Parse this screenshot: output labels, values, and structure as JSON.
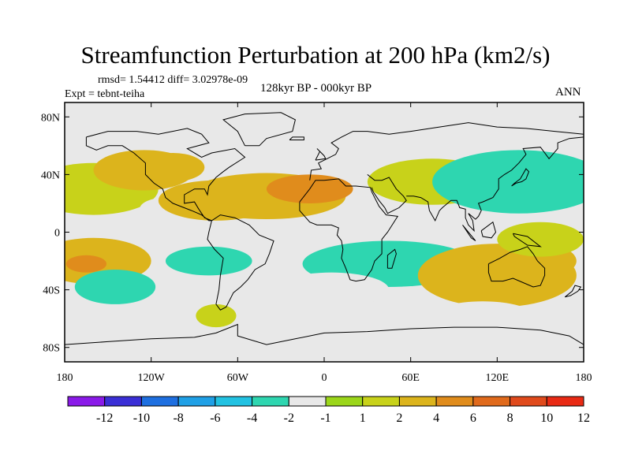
{
  "chart": {
    "title": "Streamfunction Perturbation at 200 hPa (km2/s)",
    "stats_text": "rmsd= 1.54412 diff= 3.02978e-09",
    "experiment_text": "Expt = tebnt-teiha",
    "period_text": "128kyr BP - 000kyr BP",
    "season_text": "ANN"
  },
  "chart_data": {
    "type": "heatmap",
    "title": "Streamfunction Perturbation at 200 hPa (km2/s)",
    "xlabel": "",
    "ylabel": "",
    "xlim": [
      -180,
      180
    ],
    "ylim": [
      -90,
      90
    ],
    "x_ticks": [
      {
        "value": -180,
        "label": "180"
      },
      {
        "value": -120,
        "label": "120W"
      },
      {
        "value": -60,
        "label": "60W"
      },
      {
        "value": 0,
        "label": "0"
      },
      {
        "value": 60,
        "label": "60E"
      },
      {
        "value": 120,
        "label": "120E"
      },
      {
        "value": 180,
        "label": "180"
      }
    ],
    "y_ticks": [
      {
        "value": 80,
        "label": "80N"
      },
      {
        "value": 40,
        "label": "40N"
      },
      {
        "value": 0,
        "label": "0"
      },
      {
        "value": -40,
        "label": "40S"
      },
      {
        "value": -80,
        "label": "80S"
      }
    ],
    "colorbar": {
      "colors": [
        "#8a1ae8",
        "#3a2fd6",
        "#1e6fe0",
        "#1fa0e6",
        "#22c2e2",
        "#2ed6b0",
        "#e8e8e8",
        "#9bd61a",
        "#c8d21a",
        "#dcb41c",
        "#e08c1c",
        "#e06a1c",
        "#e04a1c",
        "#e82a14"
      ],
      "levels": [
        -12,
        -10,
        -8,
        -6,
        -4,
        -2,
        -1,
        1,
        2,
        4,
        6,
        8,
        10,
        12
      ]
    },
    "anomalies": [
      {
        "lon": -160,
        "lat": 30,
        "value": 1.5
      },
      {
        "lon": -125,
        "lat": 43,
        "value": 2.5
      },
      {
        "lon": -105,
        "lat": 45,
        "value": 3.5
      },
      {
        "lon": -160,
        "lat": -20,
        "value": 3.5
      },
      {
        "lon": -165,
        "lat": -22,
        "value": 5.5
      },
      {
        "lon": -145,
        "lat": -38,
        "value": -2.5
      },
      {
        "lon": -80,
        "lat": -20,
        "value": -2.5
      },
      {
        "lon": -110,
        "lat": 16,
        "value": -1.5
      },
      {
        "lon": -75,
        "lat": 22,
        "value": 2.5
      },
      {
        "lon": -40,
        "lat": 25,
        "value": 3.5
      },
      {
        "lon": -10,
        "lat": 30,
        "value": 4.5
      },
      {
        "lon": 40,
        "lat": 68,
        "value": -1.5
      },
      {
        "lon": 75,
        "lat": 35,
        "value": 1.5
      },
      {
        "lon": 135,
        "lat": 35,
        "value": -3.5
      },
      {
        "lon": 45,
        "lat": -22,
        "value": -2.5
      },
      {
        "lon": 5,
        "lat": -40,
        "value": -1.5
      },
      {
        "lon": 120,
        "lat": -30,
        "value": 2.5
      },
      {
        "lon": 140,
        "lat": -20,
        "value": 3.5
      },
      {
        "lon": 110,
        "lat": -58,
        "value": -1.5
      },
      {
        "lon": -75,
        "lat": -58,
        "value": 1.5
      },
      {
        "lon": 150,
        "lat": -5,
        "value": 1.5
      }
    ]
  }
}
